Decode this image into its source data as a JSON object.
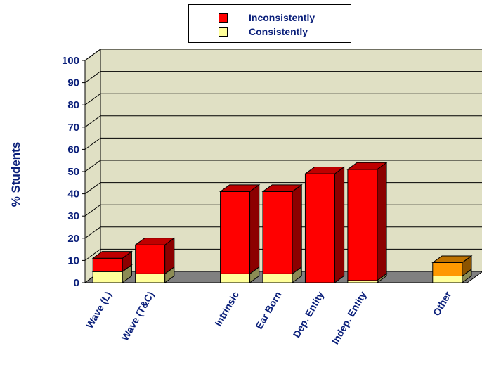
{
  "chart_data": {
    "type": "bar",
    "stacked": true,
    "three_d": true,
    "title": "",
    "xlabel": "",
    "ylabel": "% Students",
    "ylim": [
      0,
      100
    ],
    "yticks": [
      "0",
      "10",
      "20",
      "30",
      "40",
      "50",
      "60",
      "70",
      "80",
      "90",
      "100"
    ],
    "grid": true,
    "legend_position": "top",
    "categories": [
      "Wave (L)",
      "Wave (T&C)",
      "",
      "Intrinsic",
      "Ear Born",
      "Dep. Entity",
      "Indep. Entity",
      "",
      "Other"
    ],
    "series": [
      {
        "name": "Consistently",
        "color": "#ffff99",
        "values": [
          5,
          4,
          0,
          4,
          4,
          0,
          1,
          0,
          3
        ]
      },
      {
        "name": "Inconsistently",
        "color": "#ff0000",
        "values": [
          6,
          13,
          0,
          37,
          37,
          49,
          50,
          0,
          0
        ]
      }
    ],
    "extra": {
      "category": "Other",
      "color": "#ff9900",
      "value": 6
    }
  },
  "colors": {
    "wall": "#e0e0c4",
    "floor": "#808080",
    "text": "#0a1f7a"
  }
}
